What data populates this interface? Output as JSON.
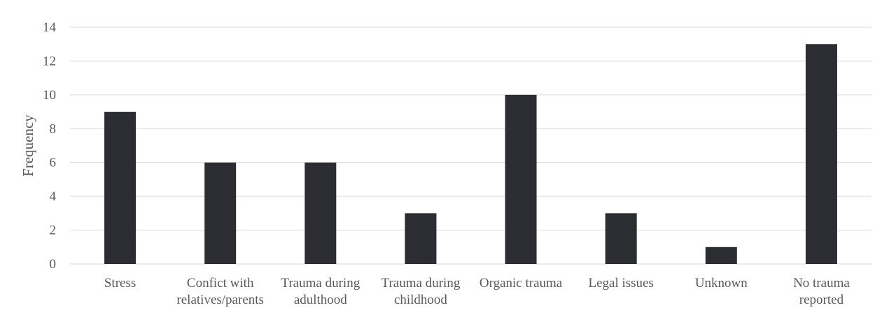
{
  "chart_data": {
    "type": "bar",
    "title": "",
    "xlabel": "",
    "ylabel": "Frequency",
    "ylim": [
      0,
      14
    ],
    "yticks": [
      0,
      2,
      4,
      6,
      8,
      10,
      12,
      14
    ],
    "grid": true,
    "legend": "none",
    "bar_color": "#2b2d33",
    "categories": [
      [
        "Stress"
      ],
      [
        "Confict with",
        "relatives/parents"
      ],
      [
        "Trauma during",
        "adulthood"
      ],
      [
        "Trauma during",
        "childhood"
      ],
      [
        "Organic trauma"
      ],
      [
        "Legal issues"
      ],
      [
        "Unknown"
      ],
      [
        "No trauma",
        "reported"
      ]
    ],
    "values": [
      9,
      6,
      6,
      3,
      10,
      3,
      1,
      13
    ]
  }
}
